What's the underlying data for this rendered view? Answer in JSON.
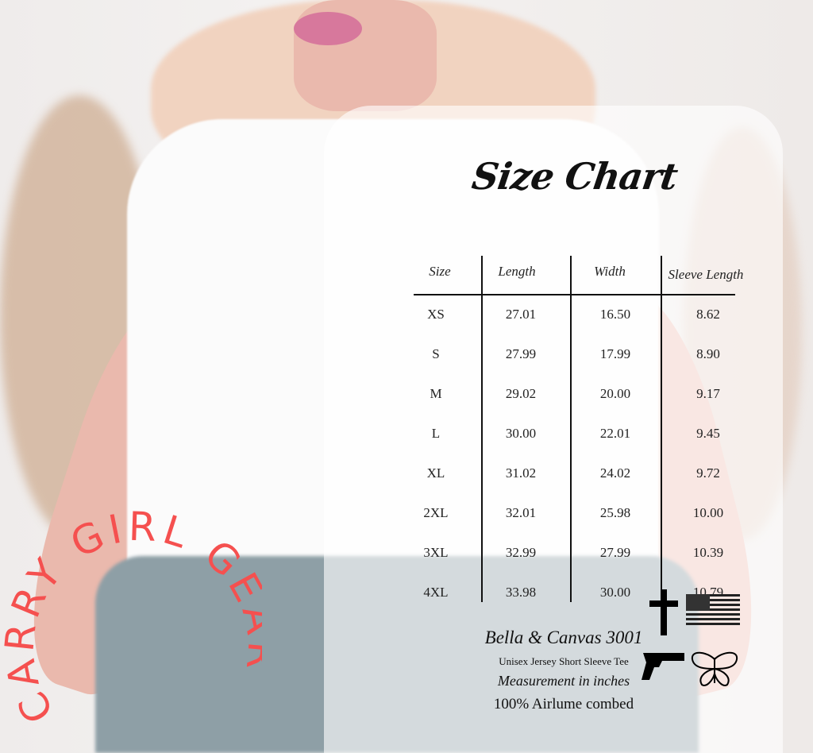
{
  "title": "Size Chart",
  "table": {
    "headers": [
      "Size",
      "Length",
      "Width",
      "Sleeve Length"
    ],
    "rows": [
      [
        "XS",
        "27.01",
        "16.50",
        "8.62"
      ],
      [
        "S",
        "27.99",
        "17.99",
        "8.90"
      ],
      [
        "M",
        "29.02",
        "20.00",
        "9.17"
      ],
      [
        "L",
        "30.00",
        "22.01",
        "9.45"
      ],
      [
        "XL",
        "31.02",
        "24.02",
        "9.72"
      ],
      [
        "2XL",
        "32.01",
        "25.98",
        "10.00"
      ],
      [
        "3XL",
        "32.99",
        "27.99",
        "10.39"
      ],
      [
        "4XL",
        "33.98",
        "30.00",
        "10.79"
      ]
    ]
  },
  "footer": {
    "brand": "Bella & Canvas 3001",
    "product": "Unisex Jersey Short Sleeve Tee",
    "units": "Measurement in inches",
    "material": "100% Airlume combed"
  },
  "logo": {
    "text": "CARRY GIRL GEAR",
    "color": "#f5504f"
  },
  "icons": [
    "cross-icon",
    "american-flag-icon",
    "handgun-icon",
    "butterfly-icon"
  ]
}
